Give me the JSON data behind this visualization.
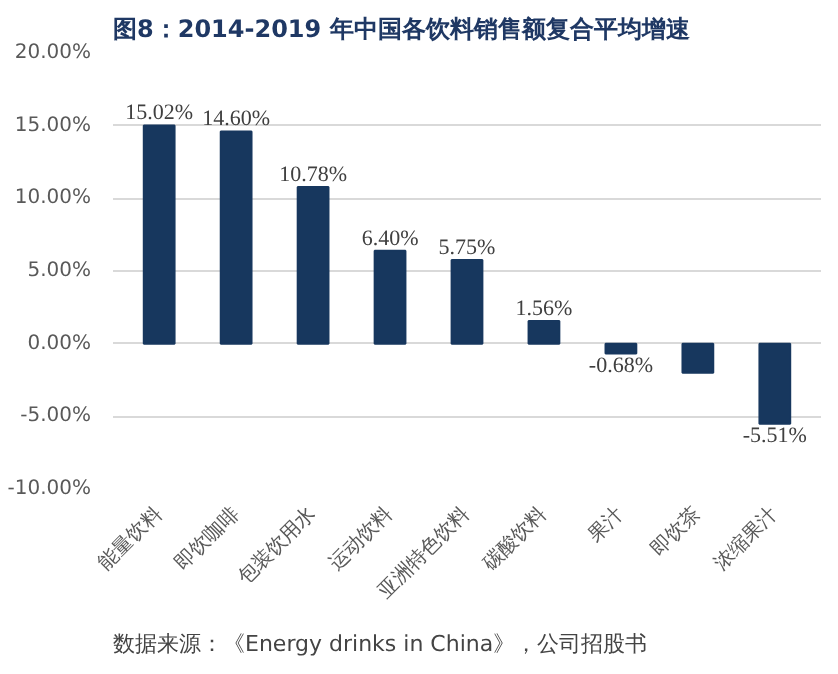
{
  "chart_data": {
    "type": "bar",
    "title": "图8：2014-2019 年中国各饮料销售额复合平均增速",
    "categories": [
      "能量饮料",
      "即饮咖啡",
      "包装饮用水",
      "运动饮料",
      "亚洲特色饮料",
      "碳酸饮料",
      "果汁",
      "即饮茶",
      "浓缩果汁"
    ],
    "values": [
      15.02,
      14.6,
      10.78,
      6.4,
      5.75,
      1.56,
      -0.68,
      -2.0,
      -5.51
    ],
    "value_labels": [
      "15.02%",
      "14.60%",
      "10.78%",
      "6.40%",
      "5.75%",
      "1.56%",
      "-0.68%",
      null,
      "-5.51%"
    ],
    "color": "#17375e",
    "ylim": [
      -10,
      20
    ],
    "yticks": [
      {
        "value": -10,
        "label": "-10.00%"
      },
      {
        "value": -5,
        "label": "-5.00%"
      },
      {
        "value": 0,
        "label": "0.00%"
      },
      {
        "value": 5,
        "label": "5.00%"
      },
      {
        "value": 10,
        "label": "10.00%"
      },
      {
        "value": 15,
        "label": "15.00%"
      },
      {
        "value": 20,
        "label": "20.00%"
      }
    ],
    "grid": "y",
    "annotations": [
      "数据来源：《Energy drinks in China》，公司招股书"
    ]
  }
}
